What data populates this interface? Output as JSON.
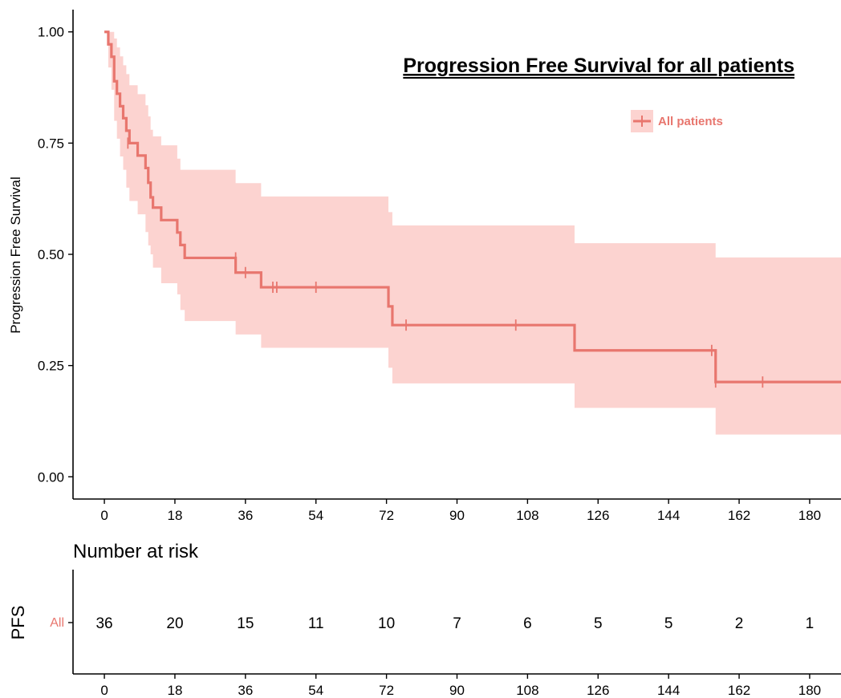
{
  "colors": {
    "curve": "#E8766E",
    "band": "#FCD3D0",
    "axis": "#000000"
  },
  "chart_data": {
    "type": "line",
    "subtype": "kaplan-meier",
    "title": "Progression Free Survival for all patients",
    "ylabel": "Progression Free Survival",
    "xlim": [
      -8,
      188
    ],
    "ylim": [
      -0.05,
      1.05
    ],
    "x_ticks": [
      0,
      18,
      36,
      54,
      72,
      90,
      108,
      126,
      144,
      162,
      180
    ],
    "y_ticks": [
      0.0,
      0.25,
      0.5,
      0.75,
      1.0
    ],
    "y_tick_labels": [
      "0.00",
      "0.25",
      "0.50",
      "0.75",
      "1.00"
    ],
    "legend": {
      "label": "All patients",
      "position": "top-right"
    },
    "series": [
      {
        "name": "All patients",
        "steps": [
          [
            0,
            1.0
          ],
          [
            1,
            0.972
          ],
          [
            1.8,
            0.944
          ],
          [
            2.5,
            0.889
          ],
          [
            3.2,
            0.861
          ],
          [
            4,
            0.833
          ],
          [
            4.8,
            0.806
          ],
          [
            5.6,
            0.778
          ],
          [
            6.4,
            0.75
          ],
          [
            8.5,
            0.722
          ],
          [
            10.5,
            0.694
          ],
          [
            11.2,
            0.661
          ],
          [
            11.8,
            0.628
          ],
          [
            12.4,
            0.605
          ],
          [
            14.5,
            0.577
          ],
          [
            18.6,
            0.549
          ],
          [
            19.4,
            0.521
          ],
          [
            20.5,
            0.492
          ],
          [
            33.5,
            0.459
          ],
          [
            40,
            0.426
          ],
          [
            72.5,
            0.383
          ],
          [
            73.5,
            0.341
          ],
          [
            120,
            0.284
          ],
          [
            156,
            0.213
          ],
          [
            188,
            0.213
          ]
        ],
        "lower": [
          [
            0,
            1.0
          ],
          [
            1,
            0.92
          ],
          [
            1.8,
            0.87
          ],
          [
            2.5,
            0.8
          ],
          [
            3.2,
            0.76
          ],
          [
            4,
            0.72
          ],
          [
            4.8,
            0.69
          ],
          [
            5.6,
            0.65
          ],
          [
            6.4,
            0.62
          ],
          [
            8.5,
            0.59
          ],
          [
            10.5,
            0.55
          ],
          [
            11.2,
            0.52
          ],
          [
            11.8,
            0.5
          ],
          [
            12.4,
            0.47
          ],
          [
            14.5,
            0.435
          ],
          [
            18.6,
            0.41
          ],
          [
            19.4,
            0.375
          ],
          [
            20.5,
            0.35
          ],
          [
            33.5,
            0.32
          ],
          [
            40,
            0.29
          ],
          [
            72.5,
            0.245
          ],
          [
            73.5,
            0.21
          ],
          [
            120,
            0.155
          ],
          [
            156,
            0.095
          ],
          [
            188,
            0.095
          ]
        ],
        "upper": [
          [
            0,
            1.0
          ],
          [
            1,
            1.0
          ],
          [
            1.8,
            1.0
          ],
          [
            2.5,
            0.985
          ],
          [
            3.2,
            0.965
          ],
          [
            4,
            0.945
          ],
          [
            4.8,
            0.925
          ],
          [
            5.6,
            0.905
          ],
          [
            6.4,
            0.88
          ],
          [
            8.5,
            0.86
          ],
          [
            10.5,
            0.835
          ],
          [
            11.2,
            0.81
          ],
          [
            11.8,
            0.78
          ],
          [
            12.4,
            0.765
          ],
          [
            14.5,
            0.745
          ],
          [
            18.6,
            0.715
          ],
          [
            19.4,
            0.69
          ],
          [
            20.5,
            0.69
          ],
          [
            33.5,
            0.66
          ],
          [
            40,
            0.63
          ],
          [
            72.5,
            0.595
          ],
          [
            73.5,
            0.565
          ],
          [
            120,
            0.525
          ],
          [
            156,
            0.493
          ],
          [
            188,
            0.493
          ]
        ],
        "censor_marks": [
          [
            6,
            0.75
          ],
          [
            33.5,
            0.492
          ],
          [
            36,
            0.459
          ],
          [
            43,
            0.426
          ],
          [
            44,
            0.426
          ],
          [
            54,
            0.426
          ],
          [
            77,
            0.341
          ],
          [
            105,
            0.341
          ],
          [
            155,
            0.284
          ],
          [
            156,
            0.213
          ],
          [
            168,
            0.213
          ]
        ]
      }
    ]
  },
  "risk_table": {
    "title": "Number at risk",
    "ylabel": "PFS",
    "strata_label": "All",
    "times": [
      0,
      18,
      36,
      54,
      72,
      90,
      108,
      126,
      144,
      162,
      180
    ],
    "counts": [
      36,
      20,
      15,
      11,
      10,
      7,
      6,
      5,
      5,
      2,
      1
    ]
  }
}
